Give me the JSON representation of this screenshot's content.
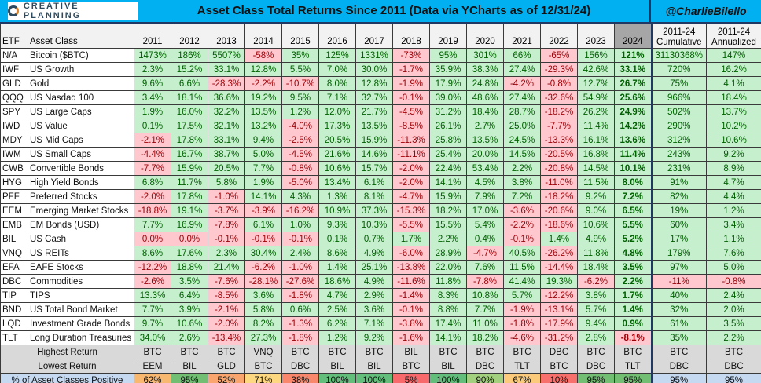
{
  "header": {
    "logo_text": "CREATIVE PLANNING",
    "title": "Asset Class Total Returns Since 2011 (Data via YCharts as of 12/31/24)",
    "handle": "@CharlieBilello"
  },
  "columns": {
    "etf": "ETF",
    "asset_class": "Asset Class",
    "years": [
      "2011",
      "2012",
      "2013",
      "2014",
      "2015",
      "2016",
      "2017",
      "2018",
      "2019",
      "2020",
      "2021",
      "2022",
      "2023",
      "2024"
    ],
    "cumulative": [
      "2011-24",
      "Cumulative"
    ],
    "annualized": [
      "2011-24",
      "Annualized"
    ]
  },
  "colors": {
    "title_bar": "#00b0f0",
    "positive_bg": "#c6efce",
    "positive_text": "#006100",
    "negative_bg": "#ffc7ce",
    "negative_text": "#9c0006"
  },
  "rows": [
    {
      "etf": "N/A",
      "name": "Bitcoin ($BTC)",
      "values": [
        "1473%",
        "186%",
        "5507%",
        "-58%",
        "35%",
        "125%",
        "1331%",
        "-73%",
        "95%",
        "301%",
        "66%",
        "-65%",
        "156%",
        "121%"
      ],
      "cum": "31130368%",
      "ann": "147%"
    },
    {
      "etf": "IWF",
      "name": "US Growth",
      "values": [
        "2.3%",
        "15.2%",
        "33.1%",
        "12.8%",
        "5.5%",
        "7.0%",
        "30.0%",
        "-1.7%",
        "35.9%",
        "38.3%",
        "27.4%",
        "-29.3%",
        "42.6%",
        "33.1%"
      ],
      "cum": "720%",
      "ann": "16.2%"
    },
    {
      "etf": "GLD",
      "name": "Gold",
      "values": [
        "9.6%",
        "6.6%",
        "-28.3%",
        "-2.2%",
        "-10.7%",
        "8.0%",
        "12.8%",
        "-1.9%",
        "17.9%",
        "24.8%",
        "-4.2%",
        "-0.8%",
        "12.7%",
        "26.7%"
      ],
      "cum": "75%",
      "ann": "4.1%"
    },
    {
      "etf": "QQQ",
      "name": "US Nasdaq 100",
      "values": [
        "3.4%",
        "18.1%",
        "36.6%",
        "19.2%",
        "9.5%",
        "7.1%",
        "32.7%",
        "-0.1%",
        "39.0%",
        "48.6%",
        "27.4%",
        "-32.6%",
        "54.9%",
        "25.6%"
      ],
      "cum": "966%",
      "ann": "18.4%"
    },
    {
      "etf": "SPY",
      "name": "US Large Caps",
      "values": [
        "1.9%",
        "16.0%",
        "32.2%",
        "13.5%",
        "1.2%",
        "12.0%",
        "21.7%",
        "-4.5%",
        "31.2%",
        "18.4%",
        "28.7%",
        "-18.2%",
        "26.2%",
        "24.9%"
      ],
      "cum": "502%",
      "ann": "13.7%"
    },
    {
      "etf": "IWD",
      "name": "US Value",
      "values": [
        "0.1%",
        "17.5%",
        "32.1%",
        "13.2%",
        "-4.0%",
        "17.3%",
        "13.5%",
        "-8.5%",
        "26.1%",
        "2.7%",
        "25.0%",
        "-7.7%",
        "11.4%",
        "14.2%"
      ],
      "cum": "290%",
      "ann": "10.2%"
    },
    {
      "etf": "MDY",
      "name": "US Mid Caps",
      "values": [
        "-2.1%",
        "17.8%",
        "33.1%",
        "9.4%",
        "-2.5%",
        "20.5%",
        "15.9%",
        "-11.3%",
        "25.8%",
        "13.5%",
        "24.5%",
        "-13.3%",
        "16.1%",
        "13.6%"
      ],
      "cum": "312%",
      "ann": "10.6%"
    },
    {
      "etf": "IWM",
      "name": "US Small Caps",
      "values": [
        "-4.4%",
        "16.7%",
        "38.7%",
        "5.0%",
        "-4.5%",
        "21.6%",
        "14.6%",
        "-11.1%",
        "25.4%",
        "20.0%",
        "14.5%",
        "-20.5%",
        "16.8%",
        "11.4%"
      ],
      "cum": "243%",
      "ann": "9.2%"
    },
    {
      "etf": "CWB",
      "name": "Convertible Bonds",
      "values": [
        "-7.7%",
        "15.9%",
        "20.5%",
        "7.7%",
        "-0.8%",
        "10.6%",
        "15.7%",
        "-2.0%",
        "22.4%",
        "53.4%",
        "2.2%",
        "-20.8%",
        "14.5%",
        "10.1%"
      ],
      "cum": "231%",
      "ann": "8.9%"
    },
    {
      "etf": "HYG",
      "name": "High Yield Bonds",
      "values": [
        "6.8%",
        "11.7%",
        "5.8%",
        "1.9%",
        "-5.0%",
        "13.4%",
        "6.1%",
        "-2.0%",
        "14.1%",
        "4.5%",
        "3.8%",
        "-11.0%",
        "11.5%",
        "8.0%"
      ],
      "cum": "91%",
      "ann": "4.7%"
    },
    {
      "etf": "PFF",
      "name": "Preferred Stocks",
      "values": [
        "-2.0%",
        "17.8%",
        "-1.0%",
        "14.1%",
        "4.3%",
        "1.3%",
        "8.1%",
        "-4.7%",
        "15.9%",
        "7.9%",
        "7.2%",
        "-18.2%",
        "9.2%",
        "7.2%"
      ],
      "cum": "82%",
      "ann": "4.4%"
    },
    {
      "etf": "EEM",
      "name": "Emerging Market Stocks",
      "values": [
        "-18.8%",
        "19.1%",
        "-3.7%",
        "-3.9%",
        "-16.2%",
        "10.9%",
        "37.3%",
        "-15.3%",
        "18.2%",
        "17.0%",
        "-3.6%",
        "-20.6%",
        "9.0%",
        "6.5%"
      ],
      "cum": "19%",
      "ann": "1.2%"
    },
    {
      "etf": "EMB",
      "name": "EM Bonds (USD)",
      "values": [
        "7.7%",
        "16.9%",
        "-7.8%",
        "6.1%",
        "1.0%",
        "9.3%",
        "10.3%",
        "-5.5%",
        "15.5%",
        "5.4%",
        "-2.2%",
        "-18.6%",
        "10.6%",
        "5.5%"
      ],
      "cum": "60%",
      "ann": "3.4%"
    },
    {
      "etf": "BIL",
      "name": "US Cash",
      "values": [
        "0.0%",
        "0.0%",
        "-0.1%",
        "-0.1%",
        "-0.1%",
        "0.1%",
        "0.7%",
        "1.7%",
        "2.2%",
        "0.4%",
        "-0.1%",
        "1.4%",
        "4.9%",
        "5.2%"
      ],
      "cum": "17%",
      "ann": "1.1%"
    },
    {
      "etf": "VNQ",
      "name": "US REITs",
      "values": [
        "8.6%",
        "17.6%",
        "2.3%",
        "30.4%",
        "2.4%",
        "8.6%",
        "4.9%",
        "-6.0%",
        "28.9%",
        "-4.7%",
        "40.5%",
        "-26.2%",
        "11.8%",
        "4.8%"
      ],
      "cum": "179%",
      "ann": "7.6%"
    },
    {
      "etf": "EFA",
      "name": "EAFE Stocks",
      "values": [
        "-12.2%",
        "18.8%",
        "21.4%",
        "-6.2%",
        "-1.0%",
        "1.4%",
        "25.1%",
        "-13.8%",
        "22.0%",
        "7.6%",
        "11.5%",
        "-14.4%",
        "18.4%",
        "3.5%"
      ],
      "cum": "97%",
      "ann": "5.0%"
    },
    {
      "etf": "DBC",
      "name": "Commodities",
      "values": [
        "-2.6%",
        "3.5%",
        "-7.6%",
        "-28.1%",
        "-27.6%",
        "18.6%",
        "4.9%",
        "-11.6%",
        "11.8%",
        "-7.8%",
        "41.4%",
        "19.3%",
        "-6.2%",
        "2.2%"
      ],
      "cum": "-11%",
      "ann": "-0.8%"
    },
    {
      "etf": "TIP",
      "name": "TIPS",
      "values": [
        "13.3%",
        "6.4%",
        "-8.5%",
        "3.6%",
        "-1.8%",
        "4.7%",
        "2.9%",
        "-1.4%",
        "8.3%",
        "10.8%",
        "5.7%",
        "-12.2%",
        "3.8%",
        "1.7%"
      ],
      "cum": "40%",
      "ann": "2.4%"
    },
    {
      "etf": "BND",
      "name": "US Total Bond Market",
      "values": [
        "7.7%",
        "3.9%",
        "-2.1%",
        "5.8%",
        "0.6%",
        "2.5%",
        "3.6%",
        "-0.1%",
        "8.8%",
        "7.7%",
        "-1.9%",
        "-13.1%",
        "5.7%",
        "1.4%"
      ],
      "cum": "32%",
      "ann": "2.0%"
    },
    {
      "etf": "LQD",
      "name": "Investment Grade Bonds",
      "values": [
        "9.7%",
        "10.6%",
        "-2.0%",
        "8.2%",
        "-1.3%",
        "6.2%",
        "7.1%",
        "-3.8%",
        "17.4%",
        "11.0%",
        "-1.8%",
        "-17.9%",
        "9.4%",
        "0.9%"
      ],
      "cum": "61%",
      "ann": "3.5%"
    },
    {
      "etf": "TLT",
      "name": "Long Duration Treasuries",
      "values": [
        "34.0%",
        "2.6%",
        "-13.4%",
        "27.3%",
        "-1.8%",
        "1.2%",
        "9.2%",
        "-1.6%",
        "14.1%",
        "18.2%",
        "-4.6%",
        "-31.2%",
        "2.8%",
        "-8.1%"
      ],
      "cum": "35%",
      "ann": "2.2%"
    }
  ],
  "footer": {
    "highest": {
      "label": "Highest Return",
      "values": [
        "BTC",
        "BTC",
        "BTC",
        "VNQ",
        "BTC",
        "BTC",
        "BTC",
        "BIL",
        "BTC",
        "BTC",
        "BTC",
        "DBC",
        "BTC",
        "BTC",
        "BTC",
        "BTC"
      ]
    },
    "lowest": {
      "label": "Lowest Return",
      "values": [
        "EEM",
        "BIL",
        "GLD",
        "BTC",
        "DBC",
        "BIL",
        "BIL",
        "BTC",
        "BIL",
        "DBC",
        "TLT",
        "BTC",
        "DBC",
        "TLT",
        "DBC",
        "DBC"
      ]
    },
    "positive": {
      "label": "% of Asset Classes Positive",
      "values": [
        "62%",
        "95%",
        "52%",
        "71%",
        "38%",
        "100%",
        "100%",
        "5%",
        "100%",
        "90%",
        "67%",
        "10%",
        "95%",
        "95%",
        "95%",
        "95%"
      ],
      "colors": [
        "#f9b870",
        "#72bf74",
        "#f9a56d",
        "#fdd880",
        "#f8876b",
        "#63be7b",
        "#63be7b",
        "#f8696b",
        "#63be7b",
        "#a2d07f",
        "#fbca7b",
        "#f8706c",
        "#72bf74",
        "#72bf74",
        "#c5d9f1",
        "#c5d9f1"
      ]
    }
  }
}
